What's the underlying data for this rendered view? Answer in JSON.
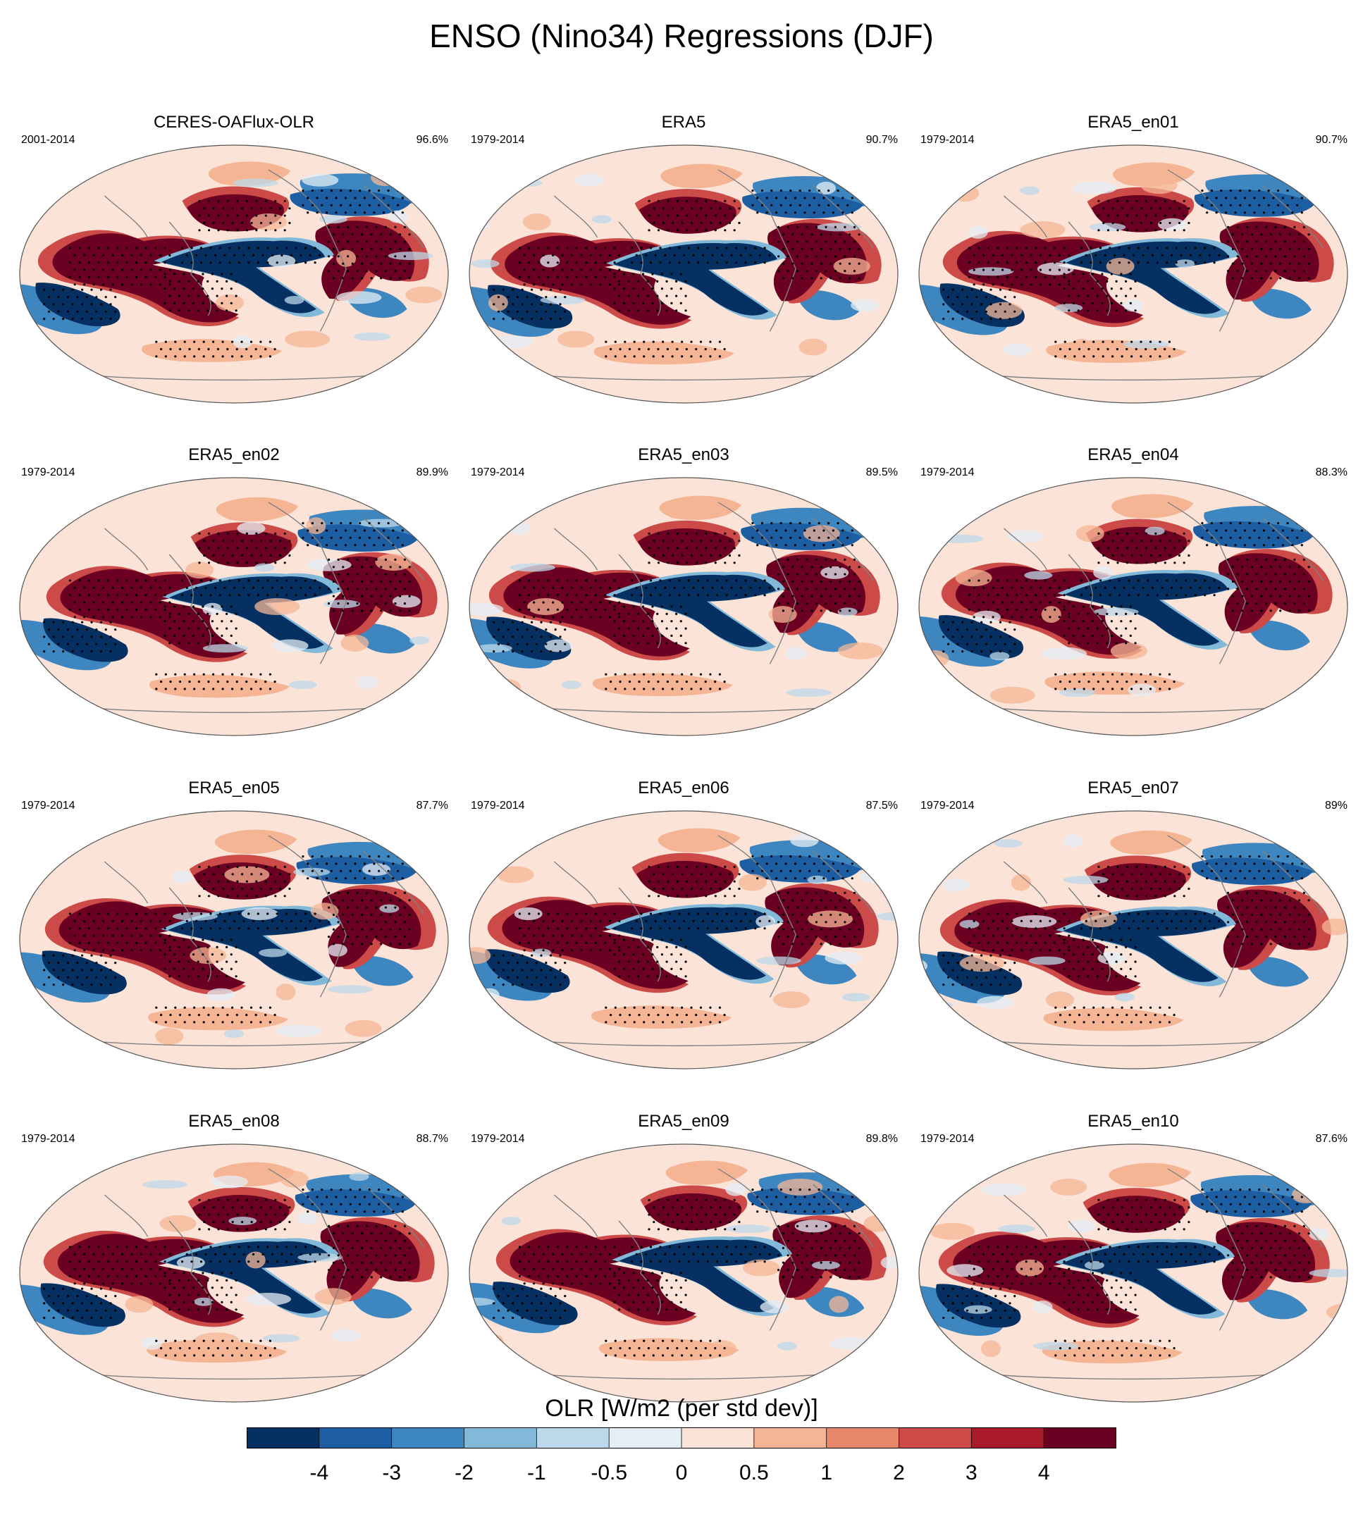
{
  "title": "ENSO (Nino34) Regressions (DJF)",
  "panels": [
    {
      "name": "CERES-OAFlux-OLR",
      "period": "2001-2014",
      "pct": "96.6%"
    },
    {
      "name": "ERA5",
      "period": "1979-2014",
      "pct": "90.7%"
    },
    {
      "name": "ERA5_en01",
      "period": "1979-2014",
      "pct": "90.7%"
    },
    {
      "name": "ERA5_en02",
      "period": "1979-2014",
      "pct": "89.9%"
    },
    {
      "name": "ERA5_en03",
      "period": "1979-2014",
      "pct": "89.5%"
    },
    {
      "name": "ERA5_en04",
      "period": "1979-2014",
      "pct": "88.3%"
    },
    {
      "name": "ERA5_en05",
      "period": "1979-2014",
      "pct": "87.7%"
    },
    {
      "name": "ERA5_en06",
      "period": "1979-2014",
      "pct": "87.5%"
    },
    {
      "name": "ERA5_en07",
      "period": "1979-2014",
      "pct": "89%"
    },
    {
      "name": "ERA5_en08",
      "period": "1979-2014",
      "pct": "88.7%"
    },
    {
      "name": "ERA5_en09",
      "period": "1979-2014",
      "pct": "89.8%"
    },
    {
      "name": "ERA5_en10",
      "period": "1979-2014",
      "pct": "87.6%"
    }
  ],
  "colorbar": {
    "label": "OLR [W/m2 (per std dev)]",
    "ticks": [
      "-4",
      "-3",
      "-2",
      "-1",
      "-0.5",
      "0",
      "0.5",
      "1",
      "2",
      "3",
      "4"
    ],
    "colors": [
      "#053061",
      "#1d5ea3",
      "#3d86bf",
      "#82b9d8",
      "#bcd8ea",
      "#e4eef5",
      "#fbe3d7",
      "#f5b595",
      "#e8876a",
      "#cc4b48",
      "#a91a2b",
      "#6b0022"
    ]
  },
  "chart_data": {
    "type": "map",
    "projection": "robinson-like global ellipse, Pacific-centered",
    "grid": false,
    "legend": "bottom colorbar",
    "stippling": "significance dots",
    "levels": [
      -4,
      -3,
      -2,
      -1,
      -0.5,
      0,
      0.5,
      1,
      2,
      3,
      4
    ],
    "panels_layout": {
      "rows": 4,
      "cols": 3
    }
  }
}
